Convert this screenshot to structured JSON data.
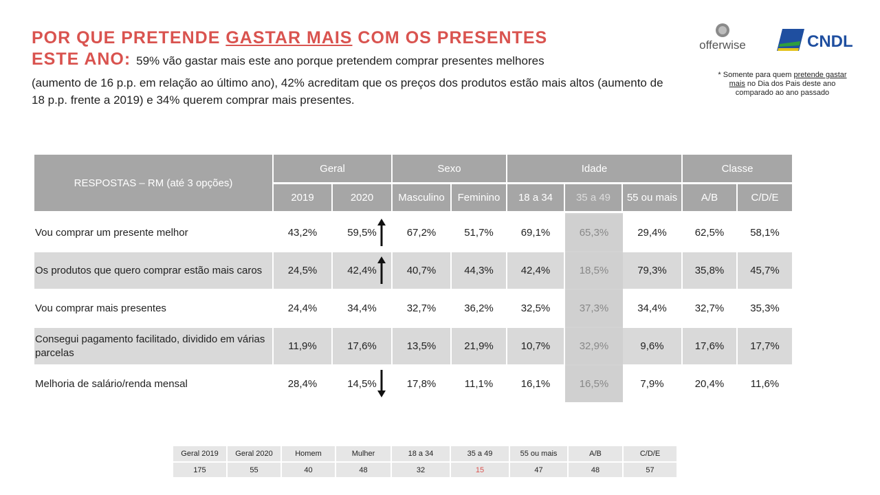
{
  "header": {
    "title_part1": "POR QUE PRETENDE ",
    "title_underlined": "GASTAR MAIS",
    "title_part2": " COM OS PRESENTES",
    "title_line2": "ESTE ANO: ",
    "subtitle": "59% vão gastar mais este ano porque pretendem comprar presentes melhores",
    "paragraph": "(aumento de 16 p.p. em relação ao último ano), 42% acreditam que os preços dos produtos estão mais altos (aumento de 18 p.p. frente a 2019) e 34% querem comprar mais presentes.",
    "note_pre": "* Somente para quem ",
    "note_underlined": "pretende gastar mais",
    "note_post": " no Dia dos Pais deste ano comparado ao ano passado"
  },
  "logos": {
    "offerwise": "offerwise",
    "cndl": "CNDL"
  },
  "table": {
    "responses_label": "RESPOSTAS – RM (até 3 opções)",
    "groups": [
      "Geral",
      "Sexo",
      "Idade",
      "Classe"
    ],
    "columns": [
      "2019",
      "2020",
      "Masculino",
      "Feminino",
      "18 a 34",
      "35 a 49",
      "55 ou mais",
      "A/B",
      "C/D/E"
    ],
    "rows": [
      {
        "label": "Vou comprar um presente melhor",
        "values": [
          "43,2%",
          "59,5%",
          "67,2%",
          "51,7%",
          "69,1%",
          "65,3%",
          "29,4%",
          "62,5%",
          "58,1%"
        ],
        "trend": "up"
      },
      {
        "label": "Os produtos que quero comprar estão mais caros",
        "values": [
          "24,5%",
          "42,4%",
          "40,7%",
          "44,3%",
          "42,4%",
          "18,5%",
          "79,3%",
          "35,8%",
          "45,7%"
        ],
        "trend": "up"
      },
      {
        "label": "Vou comprar mais presentes",
        "values": [
          "24,4%",
          "34,4%",
          "32,7%",
          "36,2%",
          "32,5%",
          "37,3%",
          "34,4%",
          "32,7%",
          "35,3%"
        ],
        "trend": ""
      },
      {
        "label": "Consegui pagamento facilitado, dividido em várias parcelas",
        "values": [
          "11,9%",
          "17,6%",
          "13,5%",
          "21,9%",
          "10,7%",
          "32,9%",
          "9,6%",
          "17,6%",
          "17,7%"
        ],
        "trend": ""
      },
      {
        "label": "Melhoria de salário/renda mensal",
        "values": [
          "28,4%",
          "14,5%",
          "17,8%",
          "11,1%",
          "16,1%",
          "16,5%",
          "7,9%",
          "20,4%",
          "11,6%"
        ],
        "trend": "down"
      }
    ]
  },
  "sample": {
    "labels": [
      "Geral 2019",
      "Geral 2020",
      "Homem",
      "Mulher",
      "18 a 34",
      "35 a 49",
      "55 ou mais",
      "A/B",
      "C/D/E"
    ],
    "values": [
      "175",
      "55",
      "40",
      "48",
      "32",
      "15",
      "47",
      "48",
      "57"
    ],
    "highlight_color": "#d9534f"
  },
  "colors": {
    "title": "#d9534f",
    "header_bg": "#a6a6a6",
    "row_bg": "#d9d9d9"
  }
}
